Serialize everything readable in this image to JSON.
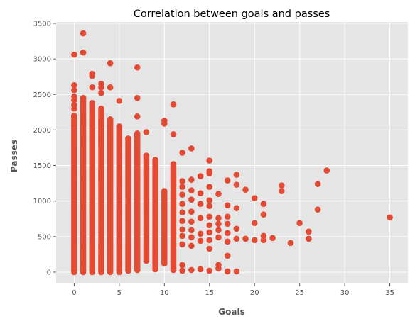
{
  "chart_data": {
    "type": "scatter",
    "title": "Correlation between goals and passes",
    "xlabel": "Goals",
    "ylabel": "Passes",
    "xlim": [
      -2,
      37
    ],
    "ylim": [
      -160,
      3520
    ],
    "xticks": [
      0,
      5,
      10,
      15,
      20,
      25,
      30,
      35
    ],
    "yticks": [
      0,
      500,
      1000,
      1500,
      2000,
      2500,
      3000,
      3500
    ],
    "grid": true,
    "marker_color": "#E24A33",
    "background_color": "#E5E5E5",
    "columns": [
      {
        "x": 0,
        "range": [
          0,
          2200
        ],
        "extra": [
          2300,
          2350,
          2420,
          2470,
          2560,
          2630,
          3060
        ]
      },
      {
        "x": 1,
        "range": [
          0,
          2450
        ],
        "extra": [
          3090,
          3360
        ]
      },
      {
        "x": 2,
        "range": [
          0,
          2380
        ],
        "extra": [
          2600,
          2760,
          2790
        ]
      },
      {
        "x": 3,
        "range": [
          0,
          2300
        ],
        "extra": [
          2520,
          2600,
          2650
        ]
      },
      {
        "x": 4,
        "range": [
          0,
          2150
        ],
        "extra": [
          2600,
          2940
        ]
      },
      {
        "x": 5,
        "range": [
          0,
          2050
        ],
        "extra": [
          2410
        ]
      },
      {
        "x": 6,
        "range": [
          20,
          1880
        ],
        "extra": []
      },
      {
        "x": 7,
        "range": [
          30,
          1950
        ],
        "extra": [
          2190,
          2450,
          2880
        ]
      },
      {
        "x": 8,
        "range": [
          160,
          1640
        ],
        "extra": [
          1970
        ]
      },
      {
        "x": 9,
        "range": [
          40,
          1580
        ],
        "extra": []
      },
      {
        "x": 10,
        "range": [
          120,
          1140
        ],
        "extra": [
          2090,
          2130
        ]
      },
      {
        "x": 11,
        "range": [
          30,
          1520
        ],
        "extra": [
          1940,
          2360
        ]
      }
    ],
    "points": [
      {
        "x": 12,
        "y": 1680
      },
      {
        "x": 12,
        "y": 1280
      },
      {
        "x": 12,
        "y": 1200
      },
      {
        "x": 12,
        "y": 1090
      },
      {
        "x": 12,
        "y": 960
      },
      {
        "x": 12,
        "y": 840
      },
      {
        "x": 12,
        "y": 720
      },
      {
        "x": 12,
        "y": 600
      },
      {
        "x": 12,
        "y": 510
      },
      {
        "x": 12,
        "y": 390
      },
      {
        "x": 12,
        "y": 100
      },
      {
        "x": 12,
        "y": 20
      },
      {
        "x": 13,
        "y": 1740
      },
      {
        "x": 13,
        "y": 1300
      },
      {
        "x": 13,
        "y": 1150
      },
      {
        "x": 13,
        "y": 1020
      },
      {
        "x": 13,
        "y": 850
      },
      {
        "x": 13,
        "y": 710
      },
      {
        "x": 13,
        "y": 590
      },
      {
        "x": 13,
        "y": 490
      },
      {
        "x": 13,
        "y": 370
      },
      {
        "x": 13,
        "y": 30
      },
      {
        "x": 14,
        "y": 1350
      },
      {
        "x": 14,
        "y": 1110
      },
      {
        "x": 14,
        "y": 960
      },
      {
        "x": 14,
        "y": 760
      },
      {
        "x": 14,
        "y": 540
      },
      {
        "x": 14,
        "y": 440
      },
      {
        "x": 14,
        "y": 40
      },
      {
        "x": 15,
        "y": 1570
      },
      {
        "x": 15,
        "y": 1420
      },
      {
        "x": 15,
        "y": 1390
      },
      {
        "x": 15,
        "y": 1200
      },
      {
        "x": 15,
        "y": 1010
      },
      {
        "x": 15,
        "y": 930
      },
      {
        "x": 15,
        "y": 780
      },
      {
        "x": 15,
        "y": 660
      },
      {
        "x": 15,
        "y": 560
      },
      {
        "x": 15,
        "y": 450
      },
      {
        "x": 15,
        "y": 330
      },
      {
        "x": 15,
        "y": 20
      },
      {
        "x": 16,
        "y": 1100
      },
      {
        "x": 16,
        "y": 760
      },
      {
        "x": 16,
        "y": 680
      },
      {
        "x": 16,
        "y": 590
      },
      {
        "x": 16,
        "y": 490
      },
      {
        "x": 16,
        "y": 100
      },
      {
        "x": 16,
        "y": 50
      },
      {
        "x": 17,
        "y": 1290
      },
      {
        "x": 17,
        "y": 940
      },
      {
        "x": 17,
        "y": 780
      },
      {
        "x": 17,
        "y": 680
      },
      {
        "x": 17,
        "y": 550
      },
      {
        "x": 17,
        "y": 430
      },
      {
        "x": 17,
        "y": 230
      },
      {
        "x": 17,
        "y": 10
      },
      {
        "x": 18,
        "y": 1370
      },
      {
        "x": 18,
        "y": 1230
      },
      {
        "x": 18,
        "y": 900
      },
      {
        "x": 18,
        "y": 610
      },
      {
        "x": 18,
        "y": 470
      },
      {
        "x": 18,
        "y": 10
      },
      {
        "x": 19,
        "y": 1160
      },
      {
        "x": 19,
        "y": 470
      },
      {
        "x": 20,
        "y": 1040
      },
      {
        "x": 20,
        "y": 690
      },
      {
        "x": 20,
        "y": 450
      },
      {
        "x": 21,
        "y": 960
      },
      {
        "x": 21,
        "y": 810
      },
      {
        "x": 21,
        "y": 510
      },
      {
        "x": 21,
        "y": 450
      },
      {
        "x": 22,
        "y": 480
      },
      {
        "x": 23,
        "y": 1220
      },
      {
        "x": 23,
        "y": 1140
      },
      {
        "x": 24,
        "y": 410
      },
      {
        "x": 25,
        "y": 690
      },
      {
        "x": 26,
        "y": 570
      },
      {
        "x": 26,
        "y": 470
      },
      {
        "x": 27,
        "y": 1240
      },
      {
        "x": 27,
        "y": 880
      },
      {
        "x": 28,
        "y": 1430
      },
      {
        "x": 35,
        "y": 770
      }
    ]
  }
}
